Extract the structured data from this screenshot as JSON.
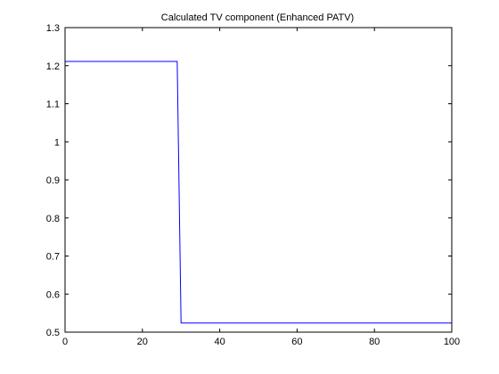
{
  "chart_data": {
    "type": "line",
    "title": "Calculated TV component (Enhanced PATV)",
    "xlabel": "",
    "ylabel": "",
    "xlim": [
      0,
      100
    ],
    "ylim": [
      0.5,
      1.3
    ],
    "xticks": [
      0,
      20,
      40,
      60,
      80,
      100
    ],
    "yticks": [
      0.5,
      0.6,
      0.7,
      0.8,
      0.9,
      1.0,
      1.1,
      1.2,
      1.3
    ],
    "xtick_labels": [
      "0",
      "20",
      "40",
      "60",
      "80",
      "100"
    ],
    "ytick_labels": [
      "0.5",
      "0.6",
      "0.7",
      "0.8",
      "0.9",
      "1",
      "1.1",
      "1.2",
      "1.3"
    ],
    "grid": false,
    "legend": "none",
    "series": [
      {
        "color": "#0000ff",
        "x": [
          0,
          29,
          30,
          100
        ],
        "y": [
          1.211,
          1.211,
          0.524,
          0.524
        ]
      }
    ]
  },
  "colors": {
    "background": "#ffffff",
    "axes": "#000000",
    "series": "#0000ff"
  }
}
